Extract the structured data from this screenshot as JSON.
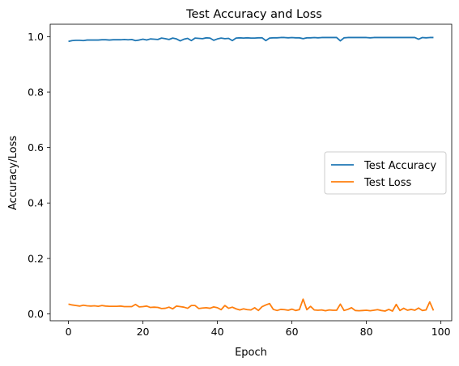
{
  "chart_data": {
    "type": "line",
    "title": "Test Accuracy and Loss",
    "xlabel": "Epoch",
    "ylabel": "Accuracy/Loss",
    "xlim": [
      -4.9,
      102.9
    ],
    "ylim": [
      -0.025,
      1.045
    ],
    "xticks": [
      0,
      20,
      40,
      60,
      80,
      100
    ],
    "yticks": [
      0.0,
      0.2,
      0.4,
      0.6,
      0.8,
      1.0
    ],
    "xtick_labels": [
      "0",
      "20",
      "40",
      "60",
      "80",
      "100"
    ],
    "ytick_labels": [
      "0.0",
      "0.2",
      "0.4",
      "0.6",
      "0.8",
      "1.0"
    ],
    "grid": false,
    "legend_position": "center-right",
    "x": [
      0,
      1,
      2,
      3,
      4,
      5,
      6,
      7,
      8,
      9,
      10,
      11,
      12,
      13,
      14,
      15,
      16,
      17,
      18,
      19,
      20,
      21,
      22,
      23,
      24,
      25,
      26,
      27,
      28,
      29,
      30,
      31,
      32,
      33,
      34,
      35,
      36,
      37,
      38,
      39,
      40,
      41,
      42,
      43,
      44,
      45,
      46,
      47,
      48,
      49,
      50,
      51,
      52,
      53,
      54,
      55,
      56,
      57,
      58,
      59,
      60,
      61,
      62,
      63,
      64,
      65,
      66,
      67,
      68,
      69,
      70,
      71,
      72,
      73,
      74,
      75,
      76,
      77,
      78,
      79,
      80,
      81,
      82,
      83,
      84,
      85,
      86,
      87,
      88,
      89,
      90,
      91,
      92,
      93,
      94,
      95,
      96,
      97,
      98
    ],
    "series": [
      {
        "name": "Test Accuracy",
        "color": "#1f77b4",
        "values": [
          0.983,
          0.986,
          0.987,
          0.987,
          0.986,
          0.988,
          0.988,
          0.988,
          0.988,
          0.989,
          0.989,
          0.988,
          0.989,
          0.989,
          0.989,
          0.99,
          0.989,
          0.99,
          0.986,
          0.988,
          0.991,
          0.988,
          0.992,
          0.991,
          0.99,
          0.995,
          0.993,
          0.99,
          0.995,
          0.992,
          0.985,
          0.991,
          0.994,
          0.986,
          0.995,
          0.994,
          0.993,
          0.996,
          0.995,
          0.987,
          0.992,
          0.995,
          0.993,
          0.994,
          0.986,
          0.995,
          0.996,
          0.995,
          0.996,
          0.995,
          0.995,
          0.996,
          0.996,
          0.986,
          0.995,
          0.996,
          0.996,
          0.997,
          0.997,
          0.996,
          0.997,
          0.996,
          0.996,
          0.993,
          0.996,
          0.996,
          0.997,
          0.996,
          0.997,
          0.997,
          0.997,
          0.997,
          0.997,
          0.985,
          0.996,
          0.997,
          0.997,
          0.997,
          0.997,
          0.997,
          0.997,
          0.996,
          0.997,
          0.997,
          0.997,
          0.997,
          0.997,
          0.997,
          0.997,
          0.997,
          0.997,
          0.997,
          0.997,
          0.997,
          0.991,
          0.997,
          0.996,
          0.997,
          0.997
        ]
      },
      {
        "name": "Test Loss",
        "color": "#ff7f0e",
        "values": [
          0.035,
          0.032,
          0.03,
          0.028,
          0.031,
          0.029,
          0.028,
          0.029,
          0.027,
          0.03,
          0.028,
          0.027,
          0.027,
          0.027,
          0.028,
          0.026,
          0.026,
          0.026,
          0.034,
          0.025,
          0.026,
          0.028,
          0.023,
          0.024,
          0.023,
          0.019,
          0.02,
          0.024,
          0.018,
          0.028,
          0.026,
          0.024,
          0.02,
          0.03,
          0.03,
          0.019,
          0.021,
          0.022,
          0.02,
          0.025,
          0.022,
          0.015,
          0.03,
          0.02,
          0.024,
          0.018,
          0.014,
          0.018,
          0.015,
          0.014,
          0.022,
          0.012,
          0.026,
          0.032,
          0.037,
          0.016,
          0.012,
          0.016,
          0.015,
          0.013,
          0.017,
          0.012,
          0.015,
          0.053,
          0.015,
          0.027,
          0.014,
          0.013,
          0.014,
          0.011,
          0.014,
          0.013,
          0.013,
          0.035,
          0.012,
          0.016,
          0.022,
          0.012,
          0.011,
          0.012,
          0.013,
          0.011,
          0.013,
          0.015,
          0.012,
          0.01,
          0.016,
          0.01,
          0.034,
          0.012,
          0.02,
          0.013,
          0.016,
          0.013,
          0.021,
          0.012,
          0.014,
          0.043,
          0.012
        ]
      }
    ]
  }
}
